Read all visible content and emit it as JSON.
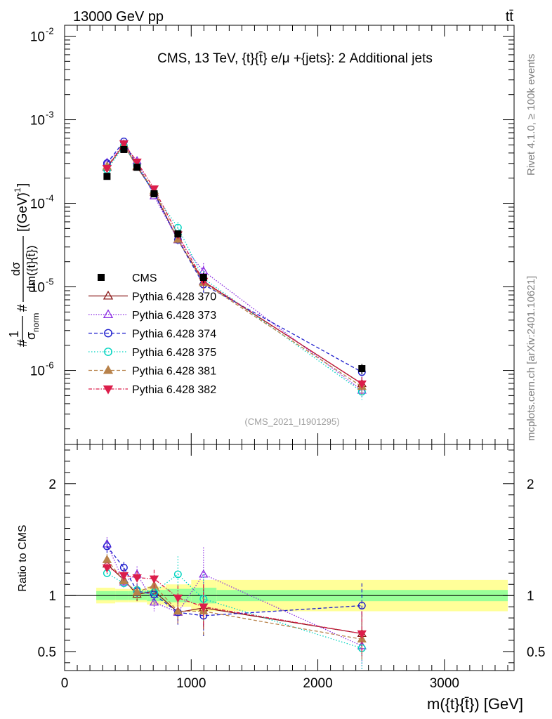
{
  "header": {
    "left": "13000 GeV pp",
    "right": "tt̄"
  },
  "side_labels": {
    "rivet": "Rivet 4.1.0, ≥ 100k events",
    "mcplots": "mcplots.cern.ch [arXiv:2401.10621]"
  },
  "chart_data": {
    "type": "scatter",
    "title": "CMS, 13 TeV, {t}{t̄} e/μ +{jets}: 2 Additional jets",
    "analysis_id": "(CMS_2021_I1901295)",
    "xlabel": "m({t}{t̄}) [GeV]",
    "ylabel": "#1/σnorm #dσ/dm({t}{t̄}) [(GeV)⁻¹]",
    "ylabel_parts": {
      "prefix": "#",
      "frac1_num": "1",
      "frac1_den": "σ",
      "frac1_den_sub": "norm",
      "hash2": "#",
      "frac2_num": "dσ",
      "frac2_den": "dm({t}{t̄})",
      "unit": "[(GeV)",
      "unit_exp": "-1",
      "unit_close": "]"
    },
    "ratio_ylabel": "Ratio to CMS",
    "xlim": [
      0,
      3550
    ],
    "ylim_main": [
      1.3e-07,
      0.0135
    ],
    "ylim_ratio": [
      0.33,
      2.35
    ],
    "yscale_main": "log",
    "x_ticks": [
      0,
      1000,
      2000,
      3000
    ],
    "x_tick_labels": [
      "0",
      "1000",
      "2000",
      "3000"
    ],
    "main_y_ticks": [
      {
        "mant": "10",
        "exp": "-6",
        "value": 1e-06
      },
      {
        "mant": "10",
        "exp": "-5",
        "value": 1e-05
      },
      {
        "mant": "10",
        "exp": "-4",
        "value": 0.0001
      },
      {
        "mant": "10",
        "exp": "-3",
        "value": 0.001
      },
      {
        "mant": "10",
        "exp": "-2",
        "value": 0.01
      }
    ],
    "ratio_y_ticks": [
      0.5,
      1,
      2
    ],
    "ratio_y_tick_labels": [
      "0.5",
      "1",
      "2"
    ],
    "bins": {
      "edges": [
        250,
        400,
        500,
        650,
        800,
        1000,
        1200,
        3500
      ],
      "centers": [
        335,
        468,
        572,
        707,
        895,
        1097,
        2348
      ]
    },
    "data": {
      "name": "CMS",
      "values": [
        0.00021,
        0.00044,
        0.00027,
        0.00013,
        4.3e-05,
        1.3e-05,
        1.05e-06
      ],
      "rel_err_stat": [
        0.04,
        0.04,
        0.04,
        0.05,
        0.06,
        0.07,
        0.05
      ],
      "rel_err_total": [
        0.07,
        0.06,
        0.06,
        0.08,
        0.1,
        0.14,
        0.14
      ]
    },
    "series": [
      {
        "name": "Pythia 6.428 370",
        "color": "#8b1a1a",
        "dash": "",
        "marker": "triangle-up-open",
        "ratios": [
          1.28,
          1.14,
          1.01,
          1.04,
          0.85,
          0.89,
          0.66
        ],
        "errs": [
          0.05,
          0.05,
          0.06,
          0.08,
          0.1,
          0.18,
          0.2
        ]
      },
      {
        "name": "Pythia 6.428 373",
        "color": "#8a2be2",
        "dash": "1.5,2",
        "marker": "triangle-up-open",
        "ratios": [
          1.46,
          1.12,
          1.19,
          0.94,
          0.85,
          1.19,
          0.55
        ],
        "errs": [
          0.06,
          0.05,
          0.07,
          0.08,
          0.12,
          0.24,
          0.2
        ]
      },
      {
        "name": "Pythia 6.428 374",
        "color": "#1e1ecd",
        "dash": "5,3",
        "marker": "circle-open",
        "ratios": [
          1.44,
          1.25,
          1.04,
          1.01,
          0.85,
          0.82,
          0.91
        ],
        "errs": [
          0.06,
          0.05,
          0.06,
          0.08,
          0.11,
          0.2,
          0.2
        ]
      },
      {
        "name": "Pythia 6.428 375",
        "color": "#00d4c0",
        "dash": "1.5,2.5",
        "marker": "circle-open",
        "ratios": [
          1.2,
          1.11,
          1.05,
          1.03,
          1.19,
          0.97,
          0.53
        ],
        "errs": [
          0.05,
          0.05,
          0.06,
          0.08,
          0.16,
          0.22,
          0.2
        ]
      },
      {
        "name": "Pythia 6.428 381",
        "color": "#b8824a",
        "dash": "5,3",
        "marker": "triangle-up-filled",
        "ratios": [
          1.32,
          1.13,
          1.03,
          1.09,
          0.86,
          0.86,
          0.61
        ],
        "errs": [
          0.05,
          0.05,
          0.06,
          0.08,
          0.11,
          0.22,
          0.2
        ]
      },
      {
        "name": "Pythia 6.428 382",
        "color": "#dc1e4b",
        "dash": "5,2,1.5,2",
        "marker": "triangle-down-filled",
        "ratios": [
          1.25,
          1.18,
          1.16,
          1.15,
          0.98,
          0.9,
          0.66
        ],
        "errs": [
          0.05,
          0.05,
          0.06,
          0.08,
          0.11,
          0.2,
          0.2
        ]
      }
    ]
  }
}
